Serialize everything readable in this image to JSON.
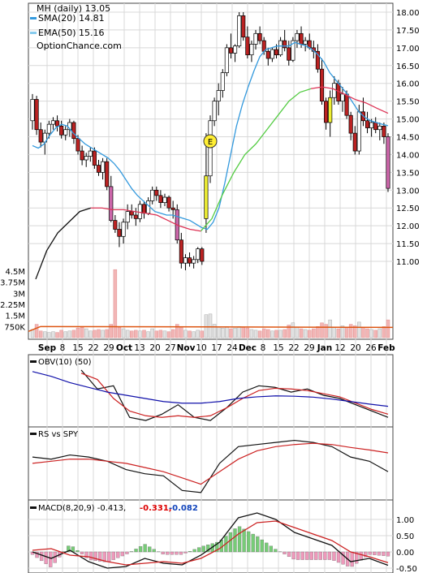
{
  "legend": {
    "title": "MH (daily) 13.05",
    "sma_label": "SMA(20) 14.81",
    "ema_label": "EMA(50) 15.16",
    "source": "OptionChance.com"
  },
  "colors": {
    "sma": "#3399dd",
    "ema_below": "#dd3355",
    "ema_above": "#55cc44",
    "ema_start": "#111111",
    "candle_up": "#ffffff",
    "candle_down": "#bb2222",
    "candle_pink": "#cc66aa",
    "candle_yellow": "#eeee33",
    "volume_down": "#f2b5b5",
    "volume_up": "#e2e2e2",
    "volume_avg": "#dd5511",
    "obv": "#111111",
    "obv_sma10": "#cc2222",
    "obv_sma50": "#1111aa",
    "rs": "#111111",
    "rs_ma": "#cc2222",
    "macd": "#111111",
    "macd_signal": "#cc2222",
    "hist_pos": "#77cc77",
    "hist_neg": "#ee99bb",
    "macd_label_red": "#dd0000",
    "macd_label_blue": "#1144bb",
    "grid": "#d8d8d8"
  },
  "panels": {
    "obv_label": "OBV(10) (50)",
    "rs_label": "RS vs SPY",
    "macd_label": "MACD(8,20,9) -0.413,",
    "macd_signal_value": "-0.331,",
    "macd_hist_value": "-0.082"
  },
  "earnings_marker": "E",
  "chart_data": {
    "type": "candlestick",
    "title": "MH (daily) 13.05",
    "dates_x_labels": [
      "Sep",
      "8",
      "15",
      "22",
      "29",
      "Oct",
      "13",
      "20",
      "27",
      "Nov",
      "10",
      "17",
      "24",
      "Dec",
      "8",
      "15",
      "22",
      "29",
      "Jan",
      "12",
      "20",
      "26",
      "Feb"
    ],
    "price_ticks": [
      "18.00",
      "17.50",
      "17.00",
      "16.50",
      "16.00",
      "15.50",
      "15.00",
      "14.50",
      "14.00",
      "13.50",
      "13.00",
      "12.50",
      "12.00",
      "11.50",
      "11.00"
    ],
    "price_range": [
      10.4,
      18.2
    ],
    "volume_ticks": [
      "4.5M",
      "3.75M",
      "3M",
      "2.25M",
      "1.5M",
      "750K"
    ],
    "macd_ticks": [
      "1.00",
      "0.50",
      "0.00",
      "-0.50"
    ],
    "candles": [
      [
        14.95,
        15.7,
        14.7,
        15.55
      ],
      [
        15.55,
        15.65,
        14.55,
        14.7
      ],
      [
        14.7,
        14.9,
        14.2,
        14.35
      ],
      [
        14.35,
        14.7,
        14.0,
        14.6
      ],
      [
        14.6,
        14.95,
        14.45,
        14.85
      ],
      [
        14.85,
        15.05,
        14.7,
        14.95
      ],
      [
        14.95,
        15.1,
        14.65,
        14.8
      ],
      [
        14.8,
        14.95,
        14.45,
        14.55
      ],
      [
        14.55,
        14.8,
        14.4,
        14.7
      ],
      [
        14.7,
        15.0,
        14.5,
        14.9
      ],
      [
        14.9,
        14.95,
        14.3,
        14.45
      ],
      [
        14.45,
        14.55,
        14.0,
        14.1
      ],
      [
        14.1,
        14.25,
        13.7,
        13.85
      ],
      [
        13.85,
        14.05,
        13.65,
        13.95
      ],
      [
        13.95,
        14.2,
        13.8,
        14.1
      ],
      [
        14.1,
        14.2,
        13.6,
        13.7
      ],
      [
        13.7,
        13.85,
        13.4,
        13.5
      ],
      [
        13.5,
        13.9,
        13.3,
        13.8
      ],
      [
        13.8,
        13.9,
        13.0,
        13.1
      ],
      [
        13.1,
        13.4,
        12.1,
        12.15
      ],
      [
        12.15,
        12.3,
        11.8,
        11.9
      ],
      [
        11.9,
        12.1,
        11.4,
        11.7
      ],
      [
        11.7,
        12.2,
        11.5,
        12.1
      ],
      [
        12.1,
        12.6,
        11.9,
        12.4
      ],
      [
        12.4,
        12.6,
        12.2,
        12.3
      ],
      [
        12.3,
        12.5,
        12.0,
        12.2
      ],
      [
        12.2,
        12.7,
        12.1,
        12.6
      ],
      [
        12.6,
        12.7,
        12.2,
        12.35
      ],
      [
        12.35,
        12.8,
        12.3,
        12.7
      ],
      [
        12.7,
        13.1,
        12.6,
        13.0
      ],
      [
        13.0,
        13.1,
        12.7,
        12.85
      ],
      [
        12.85,
        13.0,
        12.5,
        12.65
      ],
      [
        12.65,
        12.9,
        12.55,
        12.8
      ],
      [
        12.8,
        12.85,
        12.4,
        12.5
      ],
      [
        12.5,
        12.7,
        12.2,
        12.45
      ],
      [
        12.45,
        12.6,
        11.5,
        11.6
      ],
      [
        11.6,
        11.8,
        10.8,
        10.95
      ],
      [
        10.95,
        11.2,
        10.75,
        11.1
      ],
      [
        11.1,
        11.25,
        10.85,
        10.95
      ],
      [
        10.95,
        11.15,
        10.8,
        11.05
      ],
      [
        11.05,
        11.4,
        10.95,
        11.35
      ],
      [
        11.35,
        11.4,
        10.9,
        11.0
      ],
      [
        12.2,
        14.6,
        11.8,
        13.4
      ],
      [
        13.4,
        15.1,
        13.2,
        14.95
      ],
      [
        14.95,
        15.6,
        14.8,
        15.5
      ],
      [
        15.5,
        16.0,
        15.1,
        15.8
      ],
      [
        15.8,
        16.4,
        15.6,
        16.3
      ],
      [
        16.3,
        17.1,
        16.2,
        17.0
      ],
      [
        17.0,
        17.4,
        16.7,
        16.85
      ],
      [
        16.85,
        17.1,
        16.6,
        17.05
      ],
      [
        17.05,
        18.0,
        17.0,
        17.9
      ],
      [
        17.9,
        18.0,
        17.2,
        17.3
      ],
      [
        17.3,
        17.6,
        16.7,
        16.8
      ],
      [
        16.8,
        17.2,
        16.6,
        17.1
      ],
      [
        17.1,
        17.5,
        16.95,
        17.4
      ],
      [
        17.4,
        17.6,
        17.1,
        17.2
      ],
      [
        17.2,
        17.3,
        16.8,
        16.9
      ],
      [
        16.9,
        17.0,
        16.5,
        16.7
      ],
      [
        16.7,
        17.0,
        16.6,
        16.95
      ],
      [
        16.95,
        17.1,
        16.7,
        16.8
      ],
      [
        16.8,
        17.3,
        16.75,
        17.2
      ],
      [
        17.2,
        17.5,
        16.9,
        17.0
      ],
      [
        17.0,
        17.2,
        16.5,
        16.65
      ],
      [
        16.65,
        17.3,
        16.6,
        17.2
      ],
      [
        17.2,
        17.5,
        17.0,
        17.4
      ],
      [
        17.4,
        17.6,
        17.0,
        17.1
      ],
      [
        17.1,
        17.3,
        16.9,
        17.2
      ],
      [
        17.2,
        17.4,
        16.95,
        17.0
      ],
      [
        17.0,
        17.2,
        16.7,
        16.9
      ],
      [
        16.9,
        17.1,
        16.3,
        16.4
      ],
      [
        16.4,
        16.7,
        15.4,
        15.5
      ],
      [
        15.5,
        15.6,
        14.7,
        14.9
      ],
      [
        14.9,
        15.8,
        14.5,
        15.6
      ],
      [
        15.6,
        16.2,
        15.4,
        16.0
      ],
      [
        16.0,
        16.1,
        15.4,
        15.5
      ],
      [
        15.5,
        15.9,
        15.2,
        15.7
      ],
      [
        15.7,
        15.8,
        15.0,
        15.1
      ],
      [
        15.1,
        15.2,
        14.4,
        14.6
      ],
      [
        14.6,
        14.8,
        14.0,
        14.1
      ],
      [
        14.1,
        15.4,
        14.0,
        15.2
      ],
      [
        15.2,
        15.6,
        14.8,
        14.95
      ],
      [
        14.95,
        15.2,
        14.6,
        14.75
      ],
      [
        14.75,
        15.0,
        14.5,
        14.9
      ],
      [
        14.9,
        15.05,
        14.6,
        14.7
      ],
      [
        14.7,
        14.9,
        14.4,
        14.8
      ],
      [
        14.8,
        14.9,
        14.3,
        14.5
      ],
      [
        14.5,
        14.6,
        12.95,
        13.05
      ]
    ],
    "volume_millions": [
      0.55,
      0.9,
      0.45,
      0.4,
      0.35,
      0.4,
      0.35,
      0.5,
      0.4,
      0.45,
      0.5,
      0.65,
      0.7,
      0.6,
      0.45,
      0.5,
      0.55,
      0.5,
      0.55,
      0.9,
      4.6,
      0.7,
      0.6,
      0.5,
      0.45,
      0.5,
      0.45,
      0.5,
      0.4,
      0.6,
      0.45,
      0.5,
      0.45,
      0.4,
      0.55,
      0.9,
      0.7,
      0.5,
      0.45,
      0.4,
      0.5,
      0.45,
      1.55,
      1.6,
      0.9,
      0.7,
      0.65,
      0.75,
      0.6,
      0.65,
      0.75,
      0.7,
      0.65,
      0.55,
      0.5,
      0.45,
      0.6,
      0.55,
      0.45,
      0.5,
      0.5,
      0.55,
      0.85,
      1.0,
      0.7,
      0.6,
      0.55,
      0.5,
      0.6,
      0.75,
      1.0,
      0.9,
      1.2,
      0.7,
      0.6,
      0.8,
      0.7,
      0.9,
      0.8,
      1.05,
      0.7,
      0.6,
      0.55,
      0.5,
      0.6,
      0.75,
      1.2
    ],
    "volume_avg_millions": 0.75,
    "sma20": [
      14.25,
      14.18,
      14.3,
      14.55,
      14.75,
      14.85,
      14.8,
      14.6,
      14.45,
      14.3,
      14.2,
      14.1,
      14.0,
      13.9,
      13.75,
      13.55,
      13.3,
      13.05,
      12.85,
      12.7,
      12.55,
      12.4,
      12.35,
      12.3,
      12.3,
      12.25,
      12.2,
      12.15,
      12.05,
      11.95,
      11.9,
      12.1,
      12.5,
      13.2,
      14.0,
      14.8,
      15.4,
      15.9,
      16.35,
      16.75,
      16.95,
      17.0,
      17.05,
      17.05,
      17.05,
      17.15,
      17.1,
      17.05,
      16.95,
      16.8,
      16.6,
      16.3,
      16.1,
      15.9,
      15.7,
      15.45,
      15.2,
      15.05,
      14.95,
      14.9,
      14.85,
      14.81
    ],
    "ema50": [
      10.5,
      11.3,
      11.8,
      12.1,
      12.4,
      12.5,
      12.5,
      12.45,
      12.45,
      12.4,
      12.35,
      12.3,
      12.15,
      12.0,
      11.9,
      11.85,
      12.2,
      12.9,
      13.5,
      14.0,
      14.3,
      14.7,
      15.1,
      15.5,
      15.75,
      15.85,
      15.9,
      15.85,
      15.7,
      15.55,
      15.45,
      15.3,
      15.16
    ],
    "obv_values": [
      1.0,
      0.4,
      0.5,
      -0.5,
      -0.6,
      -0.4,
      -0.1,
      -0.5,
      -0.6,
      -0.2,
      0.3,
      0.5,
      0.45,
      0.3,
      0.4,
      0.2,
      0.1,
      -0.1,
      -0.3,
      -0.5
    ],
    "obv_sma10": [
      0.9,
      0.7,
      0.1,
      -0.3,
      -0.45,
      -0.5,
      -0.45,
      -0.5,
      -0.45,
      -0.2,
      0.1,
      0.35,
      0.42,
      0.4,
      0.35,
      0.25,
      0.15,
      -0.05,
      -0.25,
      -0.4
    ],
    "obv_sma50": [
      0.95,
      0.8,
      0.6,
      0.45,
      0.3,
      0.2,
      0.1,
      0.0,
      -0.05,
      -0.05,
      0.0,
      0.1,
      0.15,
      0.18,
      0.17,
      0.14,
      0.08,
      0.0,
      -0.08,
      -0.15
    ],
    "rs_values": [
      0.55,
      0.5,
      0.6,
      0.55,
      0.45,
      0.25,
      0.15,
      0.1,
      -0.25,
      -0.3,
      0.4,
      0.8,
      0.85,
      0.9,
      0.95,
      0.9,
      0.8,
      0.55,
      0.45,
      0.2
    ],
    "rs_ma": [
      0.4,
      0.45,
      0.5,
      0.5,
      0.45,
      0.4,
      0.3,
      0.2,
      0.05,
      -0.1,
      0.2,
      0.5,
      0.7,
      0.8,
      0.85,
      0.88,
      0.85,
      0.78,
      0.72,
      0.65
    ],
    "macd_values": [
      0.0,
      -0.2,
      0.05,
      -0.3,
      -0.5,
      -0.45,
      -0.2,
      -0.35,
      -0.4,
      -0.1,
      0.3,
      1.05,
      1.2,
      1.0,
      0.6,
      0.4,
      0.2,
      -0.3,
      -0.2,
      -0.413
    ],
    "macd_signal": [
      0.05,
      0.1,
      -0.1,
      -0.15,
      -0.3,
      -0.4,
      -0.35,
      -0.3,
      -0.35,
      -0.2,
      0.1,
      0.55,
      0.9,
      0.95,
      0.75,
      0.55,
      0.35,
      0.0,
      -0.15,
      -0.331
    ],
    "macd_range": [
      -0.6,
      1.15
    ]
  }
}
